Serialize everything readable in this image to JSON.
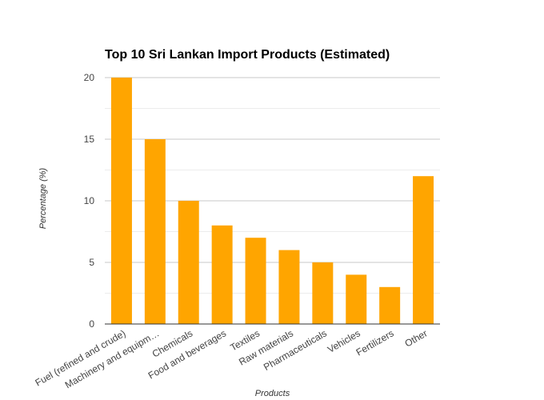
{
  "chart_data": {
    "type": "bar",
    "title": "Top 10 Sri Lankan Import Products (Estimated)",
    "xlabel": "Products",
    "ylabel": "Percentage (%)",
    "categories": [
      "Fuel (refined and crude)",
      "Machinery and equipm…",
      "Chemicals",
      "Food and beverages",
      "Textiles",
      "Raw materials",
      "Pharmaceuticals",
      "Vehicles",
      "Fertilizers",
      "Other"
    ],
    "values": [
      20,
      15,
      10,
      8,
      7,
      6,
      5,
      4,
      3,
      12
    ],
    "ylim": [
      0,
      20
    ],
    "yticks": [
      0,
      5,
      10,
      15,
      20
    ],
    "grid": true,
    "legend": "none",
    "bar_color": "#ffa500"
  }
}
